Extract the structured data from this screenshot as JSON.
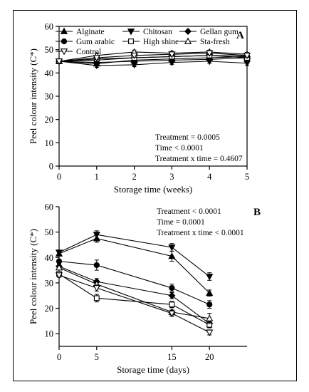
{
  "chart_data": [
    {
      "panel": "A",
      "type": "line",
      "xlabel": "Storage time (weeks)",
      "ylabel": "Peel colour intensity (C*)",
      "xlim": [
        0,
        5
      ],
      "ylim": [
        0,
        60
      ],
      "x_ticks": [
        0,
        1,
        2,
        3,
        4,
        5
      ],
      "y_ticks": [
        0,
        10,
        20,
        30,
        40,
        50,
        60
      ],
      "x": [
        0,
        1,
        2,
        3,
        4,
        5
      ],
      "legend_position": "top",
      "stats": [
        "Treatment = 0.0005",
        "Time < 0.0001",
        "Treatment x time = 0.4607"
      ],
      "series": [
        {
          "name": "Alginate",
          "marker": "triangle-up-filled",
          "values": [
            45,
            44.0,
            45.5,
            46.0,
            46.5,
            47.0
          ],
          "err": [
            0.8,
            0.8,
            0.8,
            0.8,
            0.8,
            0.8
          ]
        },
        {
          "name": "Chitosan",
          "marker": "triangle-down-filled",
          "values": [
            45,
            43.2,
            43.5,
            44.5,
            45.0,
            44.2
          ],
          "err": [
            0.8,
            0.8,
            0.8,
            0.8,
            0.8,
            1.0
          ]
        },
        {
          "name": "Gellan gum",
          "marker": "diamond-filled",
          "values": [
            45,
            44.5,
            45.0,
            45.5,
            45.8,
            46.5
          ],
          "err": [
            0.8,
            0.8,
            0.8,
            0.8,
            0.8,
            0.8
          ]
        },
        {
          "name": "Gum arabic",
          "marker": "circle-filled",
          "values": [
            45,
            45.5,
            46.5,
            47.0,
            47.5,
            47.2
          ],
          "err": [
            0.8,
            0.8,
            0.8,
            0.8,
            0.8,
            0.8
          ]
        },
        {
          "name": "High shine",
          "marker": "square-open",
          "values": [
            45,
            46.0,
            46.5,
            47.0,
            47.5,
            46.5
          ],
          "err": [
            0.8,
            0.8,
            0.8,
            0.8,
            0.8,
            0.8
          ]
        },
        {
          "name": "Sta-fresh",
          "marker": "triangle-up-open",
          "values": [
            45,
            47.5,
            49.0,
            48.5,
            49.0,
            48.0
          ],
          "err": [
            0.8,
            0.8,
            0.8,
            0.8,
            0.8,
            0.8
          ]
        },
        {
          "name": "Control",
          "marker": "triangle-down-open",
          "values": [
            45,
            46.5,
            47.5,
            48.0,
            48.5,
            47.5
          ],
          "err": [
            0.8,
            0.8,
            0.8,
            0.8,
            0.8,
            0.8
          ]
        }
      ]
    },
    {
      "panel": "B",
      "type": "line",
      "xlabel": "Storage time (days)",
      "ylabel": "Peel colour intensity (C*)",
      "xlim": [
        0,
        25
      ],
      "ylim": [
        5,
        60
      ],
      "x_ticks": [
        0,
        5,
        15,
        20
      ],
      "y_ticks": [
        10,
        20,
        30,
        40,
        50,
        60
      ],
      "x": [
        0,
        5,
        15,
        20
      ],
      "legend_position": "none",
      "stats": [
        "Treatment < 0.0001",
        "Time = 0.0001",
        "Treatment x time < 0.0001"
      ],
      "series": [
        {
          "name": "Alginate",
          "marker": "triangle-up-filled",
          "values": [
            41.5,
            47.5,
            40.5,
            26.0
          ],
          "err": [
            0.8,
            1.5,
            2.0,
            1.2
          ]
        },
        {
          "name": "Chitosan",
          "marker": "triangle-down-filled",
          "values": [
            42.0,
            49.0,
            44.0,
            32.5
          ],
          "err": [
            0.8,
            1.5,
            1.5,
            1.5
          ]
        },
        {
          "name": "Gellan gum",
          "marker": "diamond-filled",
          "values": [
            36.5,
            30.5,
            25.0,
            14.0
          ],
          "err": [
            0.8,
            1.2,
            1.2,
            1.2
          ]
        },
        {
          "name": "Gum arabic",
          "marker": "circle-filled",
          "values": [
            38.5,
            37.0,
            28.0,
            21.5
          ],
          "err": [
            0.8,
            2.0,
            1.5,
            1.5
          ]
        },
        {
          "name": "High shine",
          "marker": "square-open",
          "values": [
            33.5,
            24.0,
            21.5,
            13.5
          ],
          "err": [
            0.8,
            1.5,
            1.2,
            1.2
          ]
        },
        {
          "name": "Sta-fresh",
          "marker": "triangle-up-open",
          "values": [
            36.0,
            29.5,
            18.5,
            16.0
          ],
          "err": [
            0.8,
            1.2,
            1.2,
            2.0
          ]
        },
        {
          "name": "Control",
          "marker": "triangle-down-open",
          "values": [
            33.0,
            28.0,
            18.0,
            10.5
          ],
          "err": [
            0.8,
            1.2,
            1.2,
            1.0
          ]
        }
      ]
    }
  ]
}
